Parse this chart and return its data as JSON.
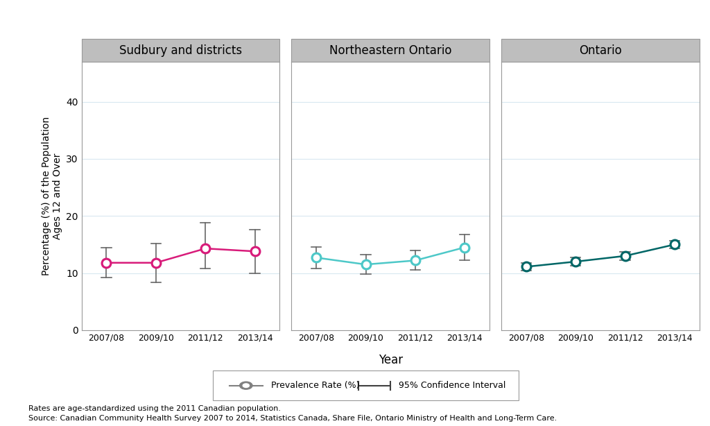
{
  "panels": [
    {
      "title": "Sudbury and districts",
      "color": "#D81B7A",
      "years": [
        "2007/08",
        "2009/10",
        "2011/12",
        "2013/14"
      ],
      "prevalence": [
        11.8,
        11.8,
        14.3,
        13.8
      ],
      "ci_lower": [
        9.2,
        8.4,
        10.8,
        10.0
      ],
      "ci_upper": [
        14.4,
        15.2,
        18.8,
        17.6
      ]
    },
    {
      "title": "Northeastern Ontario",
      "color": "#4DC8C8",
      "years": [
        "2007/08",
        "2009/10",
        "2011/12",
        "2013/14"
      ],
      "prevalence": [
        12.7,
        11.5,
        12.2,
        14.5
      ],
      "ci_lower": [
        10.8,
        9.8,
        10.5,
        12.2
      ],
      "ci_upper": [
        14.6,
        13.2,
        13.9,
        16.8
      ]
    },
    {
      "title": "Ontario",
      "color": "#006666",
      "years": [
        "2007/08",
        "2009/10",
        "2011/12",
        "2013/14"
      ],
      "prevalence": [
        11.1,
        12.0,
        13.0,
        15.0
      ],
      "ci_lower": [
        10.4,
        11.3,
        12.3,
        14.3
      ],
      "ci_upper": [
        11.8,
        12.7,
        13.7,
        15.7
      ]
    }
  ],
  "ylabel": "Percentage (%) of the Population\nAges 12 and Over",
  "xlabel": "Year",
  "ylim": [
    0,
    47
  ],
  "yticks": [
    0,
    10,
    20,
    30,
    40
  ],
  "panel_title_bg": "#BEBEBE",
  "panel_border_color": "#999999",
  "plot_bg": "#FFFFFF",
  "fig_bg": "#FFFFFF",
  "grid_color": "#D8E8F0",
  "ci_color": "#666666",
  "footnote1": "Rates are age-standardized using the 2011 Canadian population.",
  "footnote2": "Source: Canadian Community Health Survey 2007 to 2014, Statistics Canada, Share File, Ontario Ministry of Health and Long-Term Care."
}
